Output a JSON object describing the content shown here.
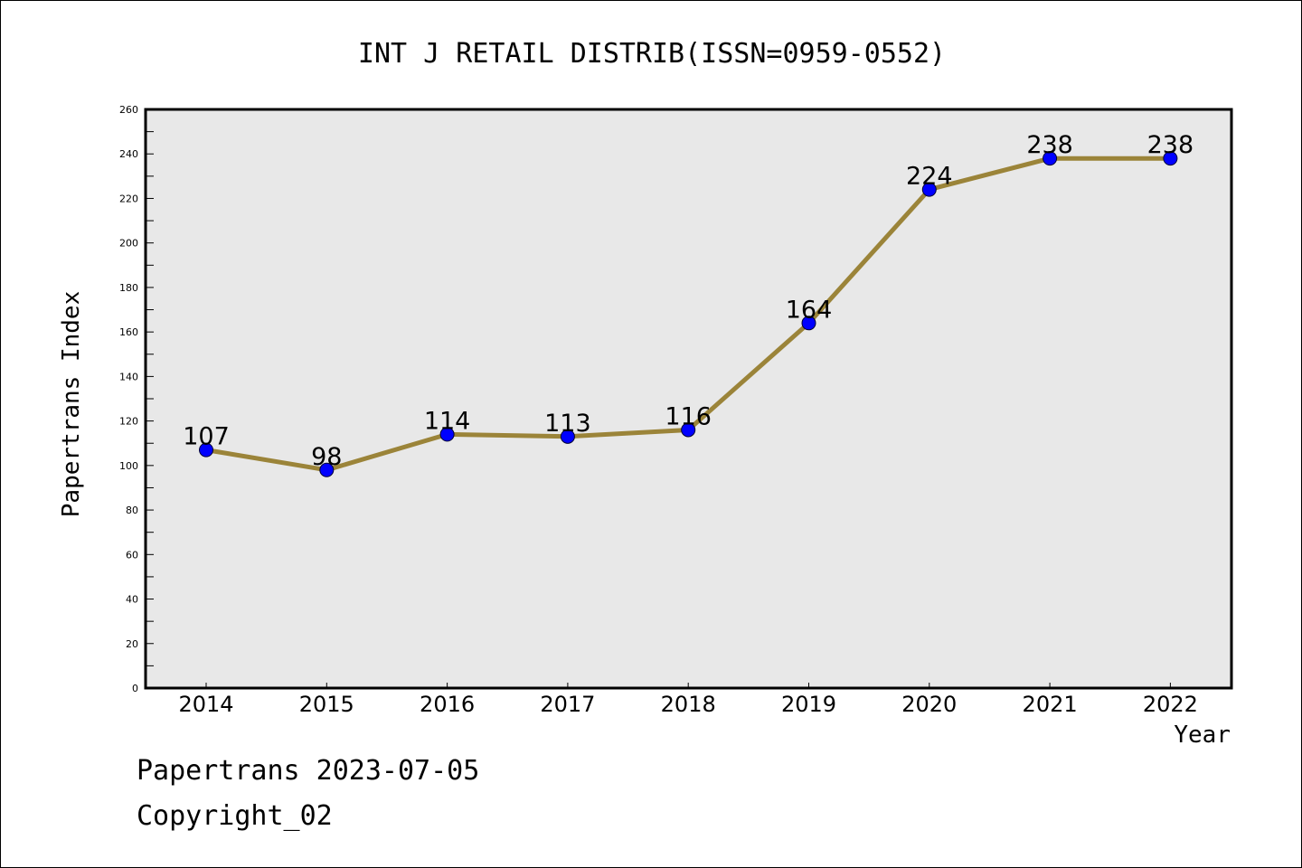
{
  "chart_data": {
    "type": "line",
    "title": "INT J RETAIL DISTRIB(ISSN=0959-0552)",
    "xlabel": "Year",
    "ylabel": "Papertrans Index",
    "categories": [
      "2014",
      "2015",
      "2016",
      "2017",
      "2018",
      "2019",
      "2020",
      "2021",
      "2022"
    ],
    "values": [
      107,
      98,
      114,
      113,
      116,
      164,
      224,
      238,
      238
    ],
    "ylim": [
      0,
      260
    ],
    "yticks": [
      0,
      20,
      40,
      60,
      80,
      100,
      120,
      140,
      160,
      180,
      200,
      220,
      240,
      260
    ],
    "data_labels": [
      "107",
      "98",
      "114",
      "113",
      "116",
      "164",
      "224",
      "238",
      "238"
    ],
    "grid": false,
    "colors": {
      "line": "#9b8439",
      "marker": "#0000ff",
      "plot_background": "#e8e8e8",
      "axis": "#000000"
    }
  },
  "footer": {
    "date_text": "Papertrans 2023-07-05",
    "copyright_text": "Copyright_02"
  }
}
